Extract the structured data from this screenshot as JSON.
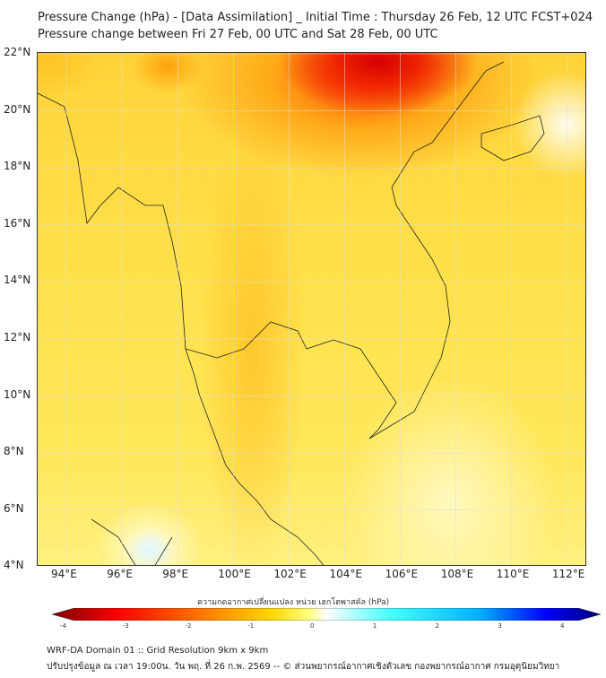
{
  "title": {
    "line1": "Pressure Change (hPa) - [Data Assimilation] _ Initial Time : Thursday 26 Feb, 12 UTC FCST+024",
    "line2": "Pressure change between Fri 27 Feb, 00 UTC and Sat 28 Feb, 00 UTC"
  },
  "map": {
    "lon_labels": [
      "94°E",
      "96°E",
      "98°E",
      "100°E",
      "102°E",
      "104°E",
      "106°E",
      "108°E",
      "110°E",
      "112°E"
    ],
    "lat_labels": [
      "22°N",
      "20°N",
      "18°N",
      "16°N",
      "14°N",
      "12°N",
      "10°N",
      "8°N",
      "6°N",
      "4°N"
    ],
    "lon_range": [
      93,
      112.7
    ],
    "lat_range": [
      4,
      22.1
    ],
    "max_drop_region": "northern Laos / southern China, about -3.5 hPa"
  },
  "colorbar": {
    "label": "ความกดอากาศเปลี่ยนแปลง หน่วย เฮกโตพาสคัล (hPa)",
    "ticks": [
      "-4",
      "-3",
      "-2",
      "-1",
      "0",
      "1",
      "2",
      "3",
      "4"
    ],
    "range": [
      -4,
      4
    ],
    "colors": [
      "#7a0000",
      "#ff0000",
      "#ff8c00",
      "#ffd700",
      "#ffff80",
      "#ffffff",
      "#40ffff",
      "#00b0ff",
      "#0000ff",
      "#00007a"
    ]
  },
  "footer": {
    "line1": "WRF-DA Domain 01 :: Grid Resolution 9km x 9km",
    "line2": "ปรับปรุงข้อมูล ณ เวลา 19:00น. วัน พฤ. ที่ 26 ก.พ. 2569 -- © ส่วนพยากรณ์อากาศเชิงตัวเลข กองพยากรณ์อากาศ กรมอุตุนิยมวิทยา"
  }
}
